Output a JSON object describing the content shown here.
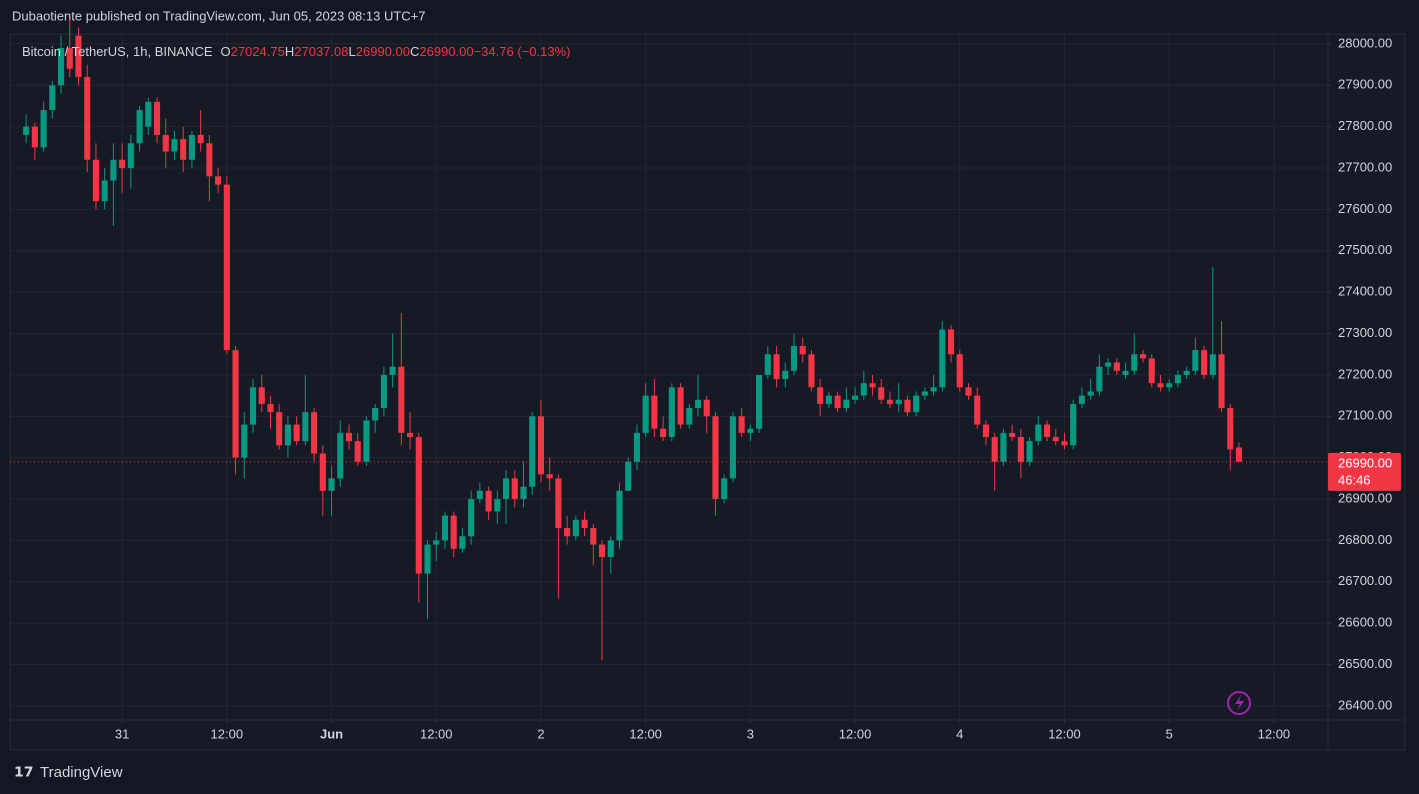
{
  "header": {
    "publisher": "Dubaotiente published on TradingView.com, Jun 05, 2023 08:13 UTC+7"
  },
  "footer": {
    "brand": "TradingView"
  },
  "chart_data": {
    "type": "candlestick",
    "legend": {
      "symbol": "Bitcoin / TetherUS, 1h, BINANCE",
      "o_label": "O",
      "o": "27024.75",
      "h_label": "H",
      "h": "27037.08",
      "l_label": "L",
      "l": "26990.00",
      "c_label": "C",
      "c": "26990.00",
      "change": "−34.76 (−0.13%)"
    },
    "up_color": "#089981",
    "down_color": "#f23645",
    "grid": true,
    "last_price": {
      "value": 26990,
      "label": "26990.00"
    },
    "countdown": "46:46",
    "xlim": [
      -12.85,
      138.2
    ],
    "xticks": [
      {
        "value": 0,
        "label": "31"
      },
      {
        "value": 12,
        "label": "12:00"
      },
      {
        "value": 24,
        "label": "Jun"
      },
      {
        "value": 36,
        "label": "12:00"
      },
      {
        "value": 48,
        "label": "2"
      },
      {
        "value": 60,
        "label": "12:00"
      },
      {
        "value": 72,
        "label": "3"
      },
      {
        "value": 84,
        "label": "12:00"
      },
      {
        "value": 96,
        "label": "4"
      },
      {
        "value": 108,
        "label": "12:00"
      },
      {
        "value": 120,
        "label": "5"
      },
      {
        "value": 132,
        "label": "12:00"
      }
    ],
    "ylim": [
      26366,
      28024
    ],
    "yticks": [
      {
        "value": 26400,
        "label": "26400.00"
      },
      {
        "value": 26500,
        "label": "26500.00"
      },
      {
        "value": 26600,
        "label": "26600.00"
      },
      {
        "value": 26700,
        "label": "26700.00"
      },
      {
        "value": 26800,
        "label": "26800.00"
      },
      {
        "value": 26900,
        "label": "26900.00"
      },
      {
        "value": 27000,
        "label": "27000.00"
      },
      {
        "value": 27100,
        "label": "27100.00"
      },
      {
        "value": 27200,
        "label": "27200.00"
      },
      {
        "value": 27300,
        "label": "27300.00"
      },
      {
        "value": 27400,
        "label": "27400.00"
      },
      {
        "value": 27500,
        "label": "27500.00"
      },
      {
        "value": 27600,
        "label": "27600.00"
      },
      {
        "value": 27700,
        "label": "27700.00"
      },
      {
        "value": 27800,
        "label": "27800.00"
      },
      {
        "value": 27900,
        "label": "27900.00"
      },
      {
        "value": 28000,
        "label": "28000.00"
      }
    ],
    "x": [
      -11,
      -10,
      -9,
      -8,
      -7,
      -6,
      -5,
      -4,
      -3,
      -2,
      -1,
      0,
      1,
      2,
      3,
      4,
      5,
      6,
      7,
      8,
      9,
      10,
      11,
      12,
      13,
      14,
      15,
      16,
      17,
      18,
      19,
      20,
      21,
      22,
      23,
      24,
      25,
      26,
      27,
      28,
      29,
      30,
      31,
      32,
      33,
      34,
      35,
      36,
      37,
      38,
      39,
      40,
      41,
      42,
      43,
      44,
      45,
      46,
      47,
      48,
      49,
      50,
      51,
      52,
      53,
      54,
      55,
      56,
      57,
      58,
      59,
      60,
      61,
      62,
      63,
      64,
      65,
      66,
      67,
      68,
      69,
      70,
      71,
      72,
      73,
      74,
      75,
      76,
      77,
      78,
      79,
      80,
      81,
      82,
      83,
      84,
      85,
      86,
      87,
      88,
      89,
      90,
      91,
      92,
      93,
      94,
      95,
      96,
      97,
      98,
      99,
      100,
      101,
      102,
      103,
      104,
      105,
      106,
      107,
      108,
      109,
      110,
      111,
      112,
      113,
      114,
      115,
      116,
      117,
      118,
      119,
      120,
      121,
      122,
      123,
      124,
      125,
      126,
      127,
      128
    ],
    "ohlc": [
      [
        27780,
        27830,
        27760,
        27800
      ],
      [
        27800,
        27810,
        27720,
        27750
      ],
      [
        27750,
        27860,
        27740,
        27840
      ],
      [
        27840,
        27910,
        27820,
        27900
      ],
      [
        27900,
        28020,
        27880,
        27990
      ],
      [
        27990,
        28060,
        27920,
        27940
      ],
      [
        28020,
        28040,
        27900,
        27920
      ],
      [
        27920,
        27950,
        27690,
        27720
      ],
      [
        27720,
        27760,
        27600,
        27620
      ],
      [
        27620,
        27700,
        27600,
        27670
      ],
      [
        27670,
        27760,
        27560,
        27720
      ],
      [
        27720,
        27760,
        27640,
        27700
      ],
      [
        27700,
        27780,
        27650,
        27760
      ],
      [
        27760,
        27850,
        27740,
        27840
      ],
      [
        27800,
        27870,
        27780,
        27860
      ],
      [
        27860,
        27870,
        27760,
        27780
      ],
      [
        27780,
        27820,
        27700,
        27740
      ],
      [
        27740,
        27790,
        27720,
        27770
      ],
      [
        27770,
        27800,
        27690,
        27720
      ],
      [
        27720,
        27790,
        27700,
        27780
      ],
      [
        27780,
        27840,
        27740,
        27760
      ],
      [
        27760,
        27780,
        27620,
        27680
      ],
      [
        27680,
        27700,
        27640,
        27660
      ],
      [
        27660,
        27680,
        27250,
        27260
      ],
      [
        27260,
        27270,
        26960,
        27000
      ],
      [
        27000,
        27110,
        26950,
        27080
      ],
      [
        27080,
        27190,
        27060,
        27170
      ],
      [
        27170,
        27200,
        27110,
        27130
      ],
      [
        27130,
        27150,
        27070,
        27110
      ],
      [
        27110,
        27130,
        27020,
        27030
      ],
      [
        27030,
        27100,
        27000,
        27080
      ],
      [
        27080,
        27100,
        27030,
        27040
      ],
      [
        27040,
        27200,
        27030,
        27110
      ],
      [
        27110,
        27120,
        26990,
        27010
      ],
      [
        27010,
        27030,
        26860,
        26920
      ],
      [
        26920,
        26980,
        26860,
        26950
      ],
      [
        26950,
        27090,
        26930,
        27060
      ],
      [
        27060,
        27080,
        27020,
        27040
      ],
      [
        27040,
        27060,
        26980,
        26990
      ],
      [
        26990,
        27100,
        26980,
        27090
      ],
      [
        27090,
        27130,
        27060,
        27120
      ],
      [
        27120,
        27220,
        27100,
        27200
      ],
      [
        27200,
        27300,
        27170,
        27220
      ],
      [
        27220,
        27350,
        27030,
        27060
      ],
      [
        27060,
        27110,
        27020,
        27050
      ],
      [
        27050,
        27060,
        26650,
        26720
      ],
      [
        26720,
        26800,
        26610,
        26790
      ],
      [
        26790,
        26820,
        26750,
        26800
      ],
      [
        26800,
        26870,
        26780,
        26860
      ],
      [
        26860,
        26870,
        26760,
        26780
      ],
      [
        26780,
        26830,
        26770,
        26810
      ],
      [
        26810,
        26920,
        26790,
        26900
      ],
      [
        26900,
        26940,
        26890,
        26920
      ],
      [
        26920,
        26930,
        26850,
        26870
      ],
      [
        26870,
        26920,
        26840,
        26900
      ],
      [
        26900,
        26970,
        26840,
        26950
      ],
      [
        26950,
        26970,
        26880,
        26900
      ],
      [
        26900,
        26990,
        26880,
        26930
      ],
      [
        26930,
        27110,
        26910,
        27100
      ],
      [
        27100,
        27140,
        26940,
        26960
      ],
      [
        26960,
        27000,
        26920,
        26950
      ],
      [
        26950,
        26960,
        26660,
        26830
      ],
      [
        26830,
        26860,
        26790,
        26810
      ],
      [
        26810,
        26860,
        26800,
        26850
      ],
      [
        26850,
        26870,
        26810,
        26830
      ],
      [
        26830,
        26840,
        26740,
        26790
      ],
      [
        26790,
        26800,
        26510,
        26760
      ],
      [
        26760,
        26810,
        26720,
        26800
      ],
      [
        26800,
        26940,
        26780,
        26920
      ],
      [
        26920,
        27000,
        26920,
        26990
      ],
      [
        26990,
        27080,
        26970,
        27060
      ],
      [
        27060,
        27180,
        27050,
        27150
      ],
      [
        27150,
        27190,
        27050,
        27070
      ],
      [
        27070,
        27100,
        27040,
        27050
      ],
      [
        27050,
        27180,
        27040,
        27170
      ],
      [
        27170,
        27180,
        27070,
        27080
      ],
      [
        27080,
        27130,
        27070,
        27120
      ],
      [
        27120,
        27200,
        27100,
        27140
      ],
      [
        27140,
        27150,
        27060,
        27100
      ],
      [
        27100,
        27110,
        26860,
        26900
      ],
      [
        26900,
        26960,
        26890,
        26950
      ],
      [
        26950,
        27110,
        26940,
        27100
      ],
      [
        27100,
        27120,
        27050,
        27060
      ],
      [
        27060,
        27080,
        27040,
        27070
      ],
      [
        27070,
        27200,
        27060,
        27200
      ],
      [
        27200,
        27270,
        27190,
        27250
      ],
      [
        27250,
        27270,
        27170,
        27190
      ],
      [
        27190,
        27230,
        27170,
        27210
      ],
      [
        27210,
        27300,
        27200,
        27270
      ],
      [
        27270,
        27290,
        27230,
        27250
      ],
      [
        27250,
        27260,
        27160,
        27170
      ],
      [
        27170,
        27190,
        27100,
        27130
      ],
      [
        27130,
        27160,
        27120,
        27150
      ],
      [
        27150,
        27160,
        27110,
        27120
      ],
      [
        27120,
        27170,
        27110,
        27140
      ],
      [
        27140,
        27170,
        27130,
        27150
      ],
      [
        27150,
        27210,
        27140,
        27180
      ],
      [
        27180,
        27200,
        27150,
        27170
      ],
      [
        27170,
        27190,
        27130,
        27140
      ],
      [
        27140,
        27160,
        27120,
        27130
      ],
      [
        27130,
        27180,
        27110,
        27140
      ],
      [
        27140,
        27150,
        27100,
        27110
      ],
      [
        27110,
        27160,
        27100,
        27150
      ],
      [
        27150,
        27170,
        27140,
        27160
      ],
      [
        27160,
        27200,
        27150,
        27170
      ],
      [
        27170,
        27330,
        27160,
        27310
      ],
      [
        27310,
        27320,
        27230,
        27250
      ],
      [
        27250,
        27260,
        27160,
        27170
      ],
      [
        27170,
        27180,
        27140,
        27150
      ],
      [
        27150,
        27170,
        27070,
        27080
      ],
      [
        27080,
        27090,
        27030,
        27050
      ],
      [
        27050,
        27060,
        26920,
        26990
      ],
      [
        26990,
        27070,
        26980,
        27060
      ],
      [
        27060,
        27080,
        27040,
        27050
      ],
      [
        27050,
        27070,
        26950,
        26990
      ],
      [
        26990,
        27050,
        26980,
        27040
      ],
      [
        27040,
        27100,
        27030,
        27080
      ],
      [
        27080,
        27090,
        27040,
        27050
      ],
      [
        27050,
        27070,
        27030,
        27040
      ],
      [
        27040,
        27060,
        27020,
        27030
      ],
      [
        27030,
        27140,
        27020,
        27130
      ],
      [
        27130,
        27170,
        27120,
        27150
      ],
      [
        27150,
        27190,
        27140,
        27160
      ],
      [
        27160,
        27250,
        27150,
        27220
      ],
      [
        27220,
        27240,
        27200,
        27230
      ],
      [
        27230,
        27240,
        27200,
        27210
      ],
      [
        27200,
        27230,
        27190,
        27210
      ],
      [
        27210,
        27300,
        27200,
        27250
      ],
      [
        27250,
        27260,
        27230,
        27240
      ],
      [
        27240,
        27250,
        27170,
        27180
      ],
      [
        27180,
        27200,
        27160,
        27170
      ],
      [
        27170,
        27190,
        27160,
        27180
      ],
      [
        27180,
        27210,
        27170,
        27200
      ],
      [
        27200,
        27220,
        27190,
        27210
      ],
      [
        27210,
        27290,
        27200,
        27260
      ],
      [
        27260,
        27270,
        27190,
        27200
      ],
      [
        27200,
        27460,
        27190,
        27250
      ],
      [
        27250,
        27330,
        27110,
        27120
      ],
      [
        27120,
        27130,
        26970,
        27020
      ],
      [
        27024.75,
        27037.08,
        26990,
        26990
      ]
    ]
  }
}
